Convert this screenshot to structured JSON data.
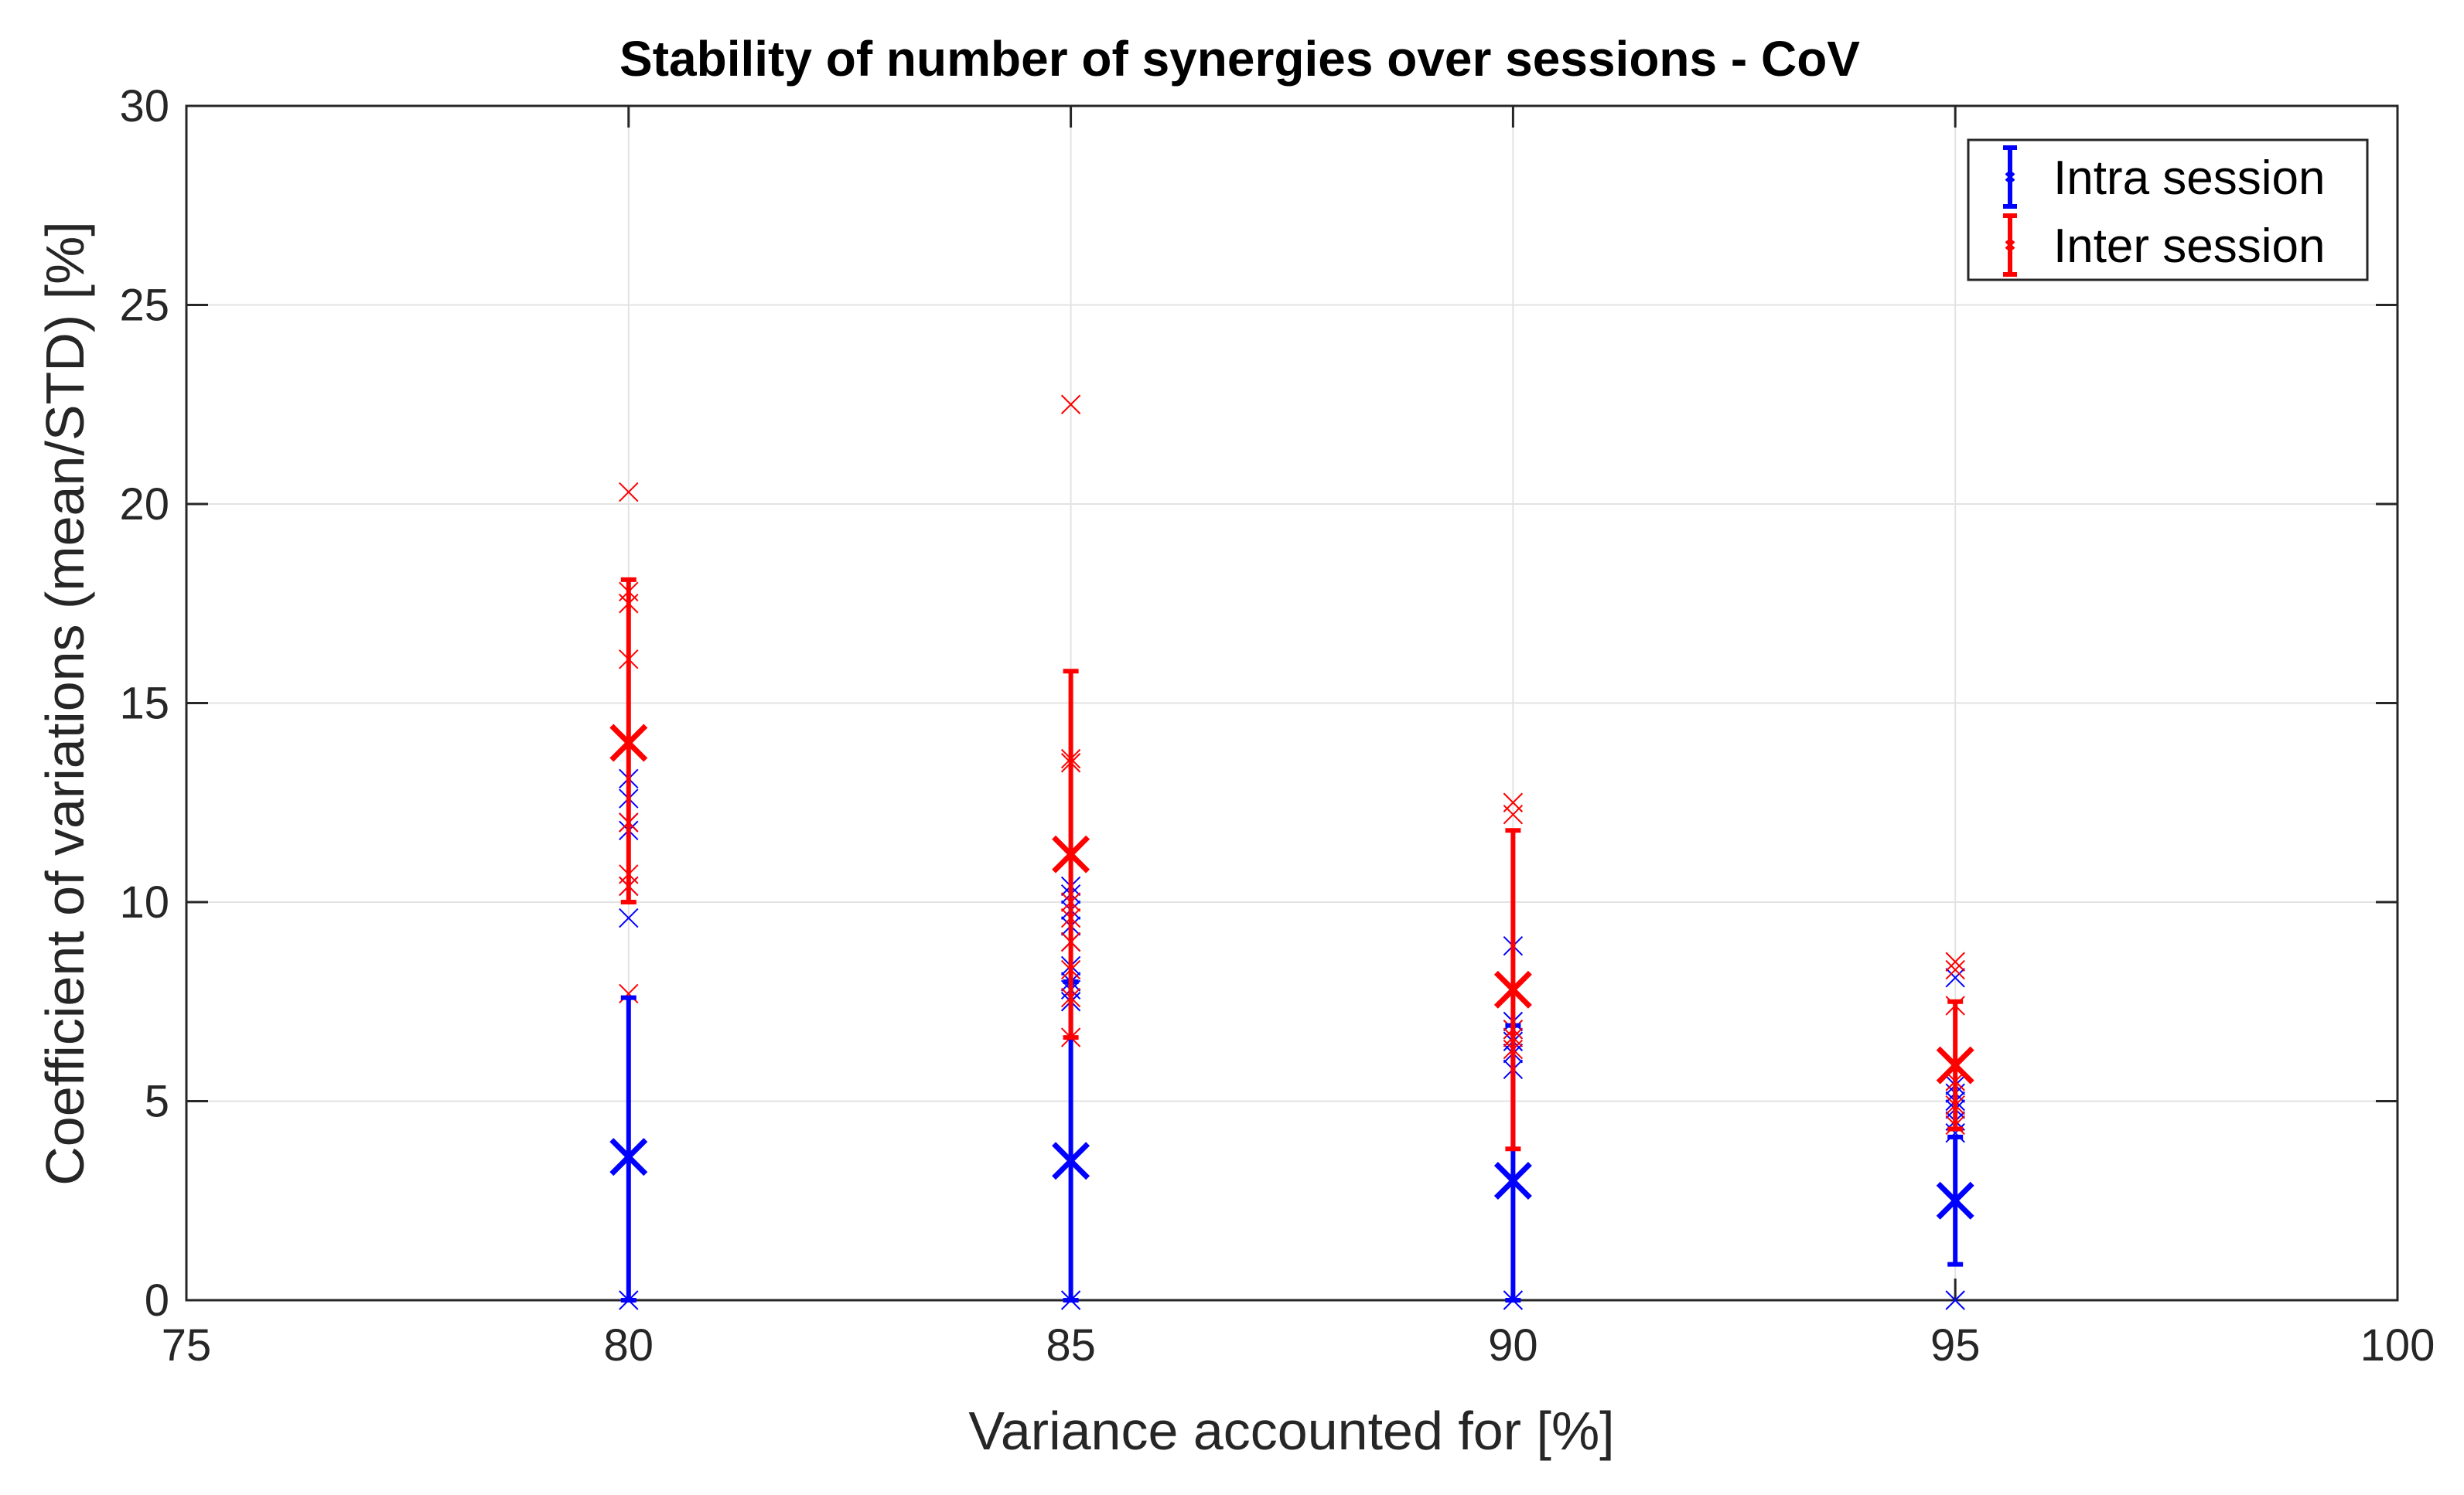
{
  "chart_data": {
    "type": "scatter",
    "title": "Stability of number of synergies over sessions - CoV",
    "xlabel": "Variance accounted for [%]",
    "ylabel": "Coefficient of variations (mean/STD) [%]",
    "xlim": [
      75,
      100
    ],
    "ylim": [
      0,
      30
    ],
    "xticks": [
      75,
      80,
      85,
      90,
      95,
      100
    ],
    "yticks": [
      0,
      5,
      10,
      15,
      20,
      25,
      30
    ],
    "grid": true,
    "legend_position": "top-right",
    "series": [
      {
        "name": "Intra session",
        "color": "#0000ff",
        "x": [
          80,
          85,
          90,
          95
        ],
        "mean": [
          3.6,
          3.5,
          3.0,
          2.5
        ],
        "err_low": [
          0,
          0,
          0,
          0.9
        ],
        "err_high": [
          7.6,
          8.0,
          6.9,
          4.1
        ],
        "points": [
          [
            0,
            9.6,
            10.4,
            11.8,
            12.0,
            12.6,
            13.1
          ],
          [
            0,
            7.5,
            7.8,
            8.0,
            8.4,
            9.0,
            9.4,
            9.8,
            10.2,
            10.4
          ],
          [
            0,
            5.8,
            6.2,
            6.5,
            6.8,
            7.0,
            8.9
          ],
          [
            0,
            4.2,
            4.5,
            4.8,
            5.0,
            5.2,
            5.4,
            8.1
          ]
        ]
      },
      {
        "name": "Inter session",
        "color": "#ff0000",
        "x": [
          80,
          85,
          90,
          95
        ],
        "mean": [
          14.0,
          11.2,
          7.8,
          5.9
        ],
        "err_low": [
          10.0,
          6.6,
          3.8,
          4.3
        ],
        "err_high": [
          18.1,
          15.8,
          11.8,
          7.5
        ],
        "points": [
          [
            7.7,
            10.4,
            10.7,
            12.0,
            16.1,
            17.5,
            17.8,
            20.3
          ],
          [
            6.6,
            7.6,
            8.3,
            9.0,
            9.6,
            10.0,
            13.5,
            13.6,
            22.5
          ],
          [
            6.3,
            6.6,
            6.8,
            12.2,
            12.5
          ],
          [
            4.4,
            4.9,
            5.5,
            7.4,
            8.3,
            8.5
          ]
        ]
      }
    ]
  }
}
